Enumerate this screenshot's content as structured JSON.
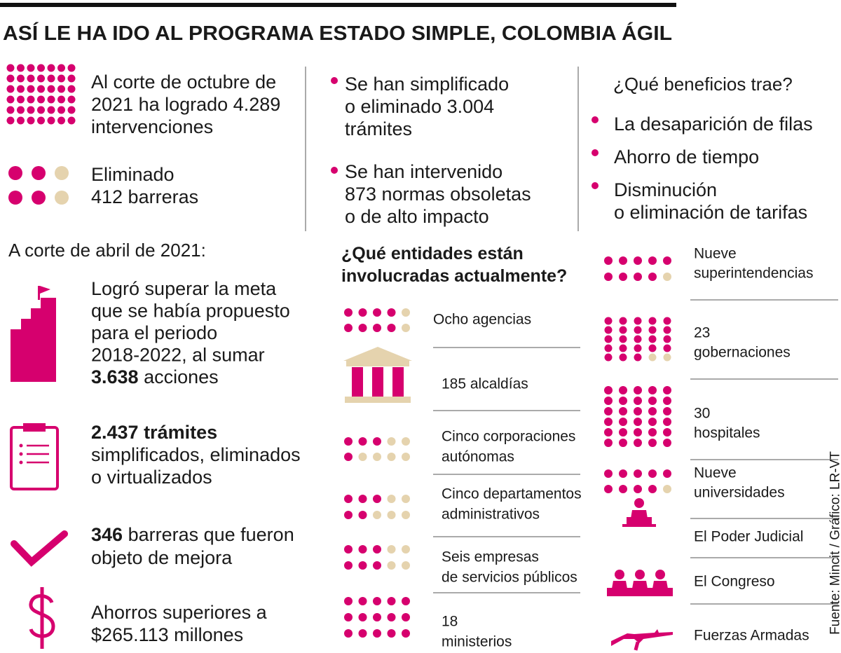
{
  "title": "ASÍ LE HA IDO AL PROGRAMA ESTADO SIMPLE, COLOMBIA ÁGIL",
  "top_left": {
    "items": [
      {
        "lines": [
          "Al corte de octubre de",
          "2021 ha logrado 4.289",
          "intervenciones"
        ]
      },
      {
        "lines": [
          "Eliminado",
          "412 barreras"
        ]
      }
    ]
  },
  "top_middle": {
    "items": [
      {
        "lines": [
          "Se han simplificado",
          "o eliminado 3.004",
          "trámites"
        ]
      },
      {
        "lines": [
          "Se han intervenido",
          "873 normas obsoletas",
          "o de alto impacto"
        ]
      }
    ]
  },
  "benefits": {
    "title": "¿Qué beneficios trae?",
    "items": [
      {
        "lines": [
          "La desaparición de filas"
        ]
      },
      {
        "lines": [
          "Ahorro de tiempo"
        ]
      },
      {
        "lines": [
          "Disminución",
          "o eliminación de tarifas"
        ]
      }
    ]
  },
  "april": {
    "title": "A corte de abril de 2021:",
    "items": [
      {
        "lines": [
          "Logró superar la meta",
          "que se había propuesto",
          "para el periodo",
          "2018-2022, al sumar",
          [
            {
              "text": "3.638",
              "bold": true
            },
            {
              "text": " acciones"
            }
          ]
        ]
      },
      {
        "lines": [
          [
            {
              "text": "2.437 trámites",
              "bold": true
            }
          ],
          "simplificados, eliminados",
          "o virtualizados"
        ]
      },
      {
        "lines": [
          [
            {
              "text": "346",
              "bold": true
            },
            {
              "text": " barreras que fueron"
            }
          ],
          "objeto de mejora"
        ]
      },
      {
        "lines": [
          "Ahorros superiores a",
          "$265.113 millones"
        ]
      }
    ]
  },
  "entities": {
    "title": [
      "¿Qué entidades están",
      "involucradas actualmente?"
    ],
    "left": [
      {
        "lines": [
          "Ocho agencias"
        ]
      },
      {
        "lines": [
          "185 alcaldías"
        ]
      },
      {
        "lines": [
          "Cinco corporaciones",
          "autónomas"
        ]
      },
      {
        "lines": [
          "Cinco departamentos",
          "administrativos"
        ]
      },
      {
        "lines": [
          "Seis empresas",
          "de servicios públicos"
        ]
      },
      {
        "lines": [
          "18",
          "ministerios"
        ]
      }
    ],
    "right": [
      {
        "lines": [
          "Nueve",
          "superintendencias"
        ]
      },
      {
        "lines": [
          "23",
          "gobernaciones"
        ]
      },
      {
        "lines": [
          "30",
          "hospitales"
        ]
      },
      {
        "lines": [
          "Nueve",
          "universidades"
        ]
      },
      {
        "lines": [
          "El Poder Judicial"
        ]
      },
      {
        "lines": [
          "El Congreso"
        ]
      },
      {
        "lines": [
          "Fuerzas Armadas"
        ]
      }
    ]
  },
  "source": "Fuente: Mincit / Gráfico: LR-VT"
}
